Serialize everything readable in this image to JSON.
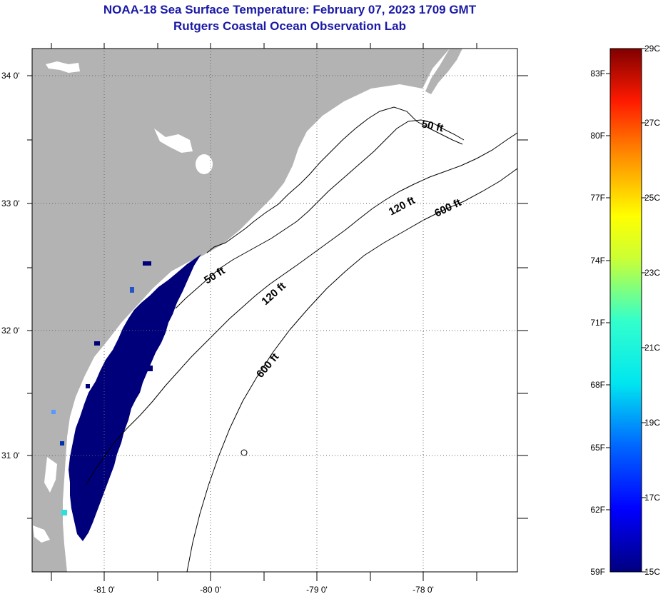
{
  "title": {
    "line1": "NOAA-18 Sea Surface Temperature:  February 07, 2023 1709 GMT",
    "line2": "Rutgers Coastal Ocean Observation Lab"
  },
  "lat_labels": [
    "34 0'",
    "33 0'",
    "32 0'",
    "31 0'"
  ],
  "lon_labels": [
    "-81 0'",
    "-80 0'",
    "-79 0'",
    "-78 0'"
  ],
  "isobaths": [
    {
      "label": "50 ft"
    },
    {
      "label": "50 ft"
    },
    {
      "label": "120 ft"
    },
    {
      "label": "120 ft"
    },
    {
      "label": "600 ft"
    },
    {
      "label": "600 ft"
    }
  ],
  "colorbar": {
    "fahrenheit_labels": [
      "83F",
      "80F",
      "77F",
      "74F",
      "71F",
      "68F",
      "65F",
      "62F",
      "59F"
    ],
    "celsius_labels": [
      "29C",
      "27C",
      "25C",
      "23C",
      "21C",
      "19C",
      "17C",
      "15C"
    ]
  },
  "colors": {
    "land": "#b3b3b3",
    "cold_sst": "#00007a",
    "title": "#1a1aa6"
  }
}
